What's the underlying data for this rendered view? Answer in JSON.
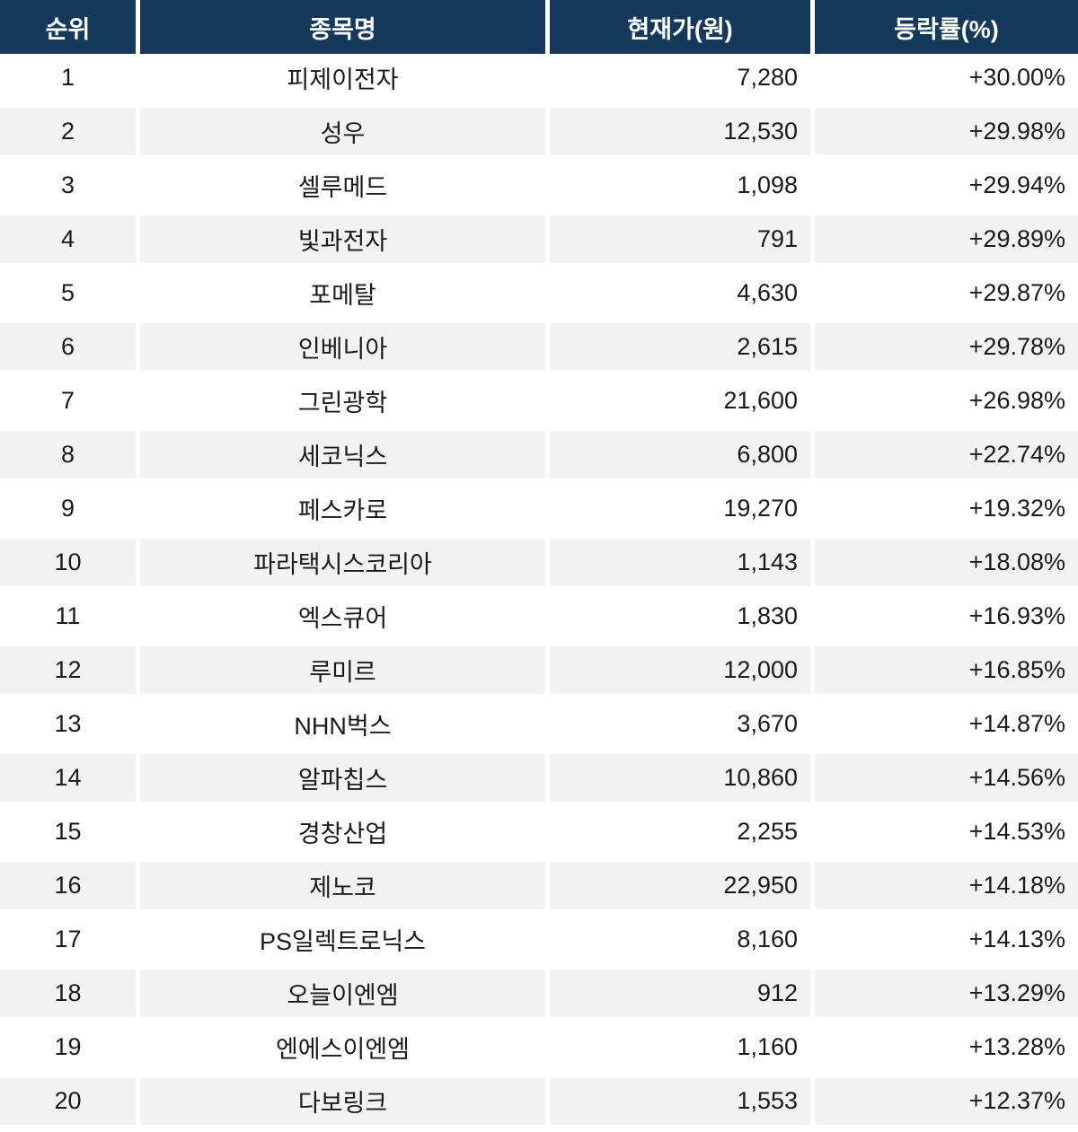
{
  "chart_data": {
    "type": "table",
    "title": "",
    "columns": [
      "순위",
      "종목명",
      "현재가(원)",
      "등락률(%)"
    ],
    "rows": [
      [
        "1",
        "피제이전자",
        "7,280",
        "+30.00%"
      ],
      [
        "2",
        "성우",
        "12,530",
        "+29.98%"
      ],
      [
        "3",
        "셀루메드",
        "1,098",
        "+29.94%"
      ],
      [
        "4",
        "빛과전자",
        "791",
        "+29.89%"
      ],
      [
        "5",
        "포메탈",
        "4,630",
        "+29.87%"
      ],
      [
        "6",
        "인베니아",
        "2,615",
        "+29.78%"
      ],
      [
        "7",
        "그린광학",
        "21,600",
        "+26.98%"
      ],
      [
        "8",
        "세코닉스",
        "6,800",
        "+22.74%"
      ],
      [
        "9",
        "페스카로",
        "19,270",
        "+19.32%"
      ],
      [
        "10",
        "파라택시스코리아",
        "1,143",
        "+18.08%"
      ],
      [
        "11",
        "엑스큐어",
        "1,830",
        "+16.93%"
      ],
      [
        "12",
        "루미르",
        "12,000",
        "+16.85%"
      ],
      [
        "13",
        "NHN벅스",
        "3,670",
        "+14.87%"
      ],
      [
        "14",
        "알파칩스",
        "10,860",
        "+14.56%"
      ],
      [
        "15",
        "경창산업",
        "2,255",
        "+14.53%"
      ],
      [
        "16",
        "제노코",
        "22,950",
        "+14.18%"
      ],
      [
        "17",
        "PS일렉트로닉스",
        "8,160",
        "+14.13%"
      ],
      [
        "18",
        "오늘이엔엠",
        "912",
        "+13.29%"
      ],
      [
        "19",
        "엔에스이엔엠",
        "1,160",
        "+13.28%"
      ],
      [
        "20",
        "다보링크",
        "1,553",
        "+12.37%"
      ]
    ],
    "layout_hints": {
      "striped": "even ranks shaded",
      "price_and_change_alignment": "right",
      "rank_and_name_alignment": "center",
      "header_style": "navy background, white bold text"
    }
  },
  "colors": {
    "header_bg": "#15395B",
    "header_text": "#FFFFFF",
    "row_bg": "#FFFFFF",
    "row_alt_bg": "#F2F2F2",
    "text": "#1A1A1A",
    "separator": "#FFFFFF"
  }
}
